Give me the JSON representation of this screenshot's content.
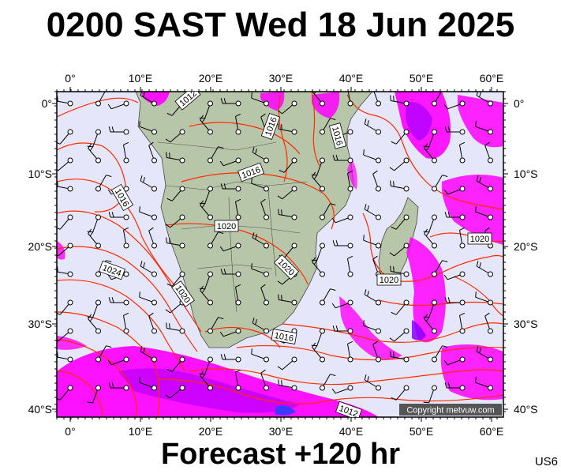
{
  "title": "0200 SAST Wed 18 Jun 2025",
  "footer": "Forecast +120 hr",
  "code": "US6",
  "copyright": "Copyright metvuw.com",
  "axes": {
    "longitudes": [
      "0°",
      "10°E",
      "20°E",
      "30°E",
      "40°E",
      "50°E",
      "60°E"
    ],
    "latitudes": [
      "0°",
      "10°S",
      "20°S",
      "30°S",
      "40°S"
    ]
  },
  "isobar_labels": [
    "1012",
    "1016",
    "1016",
    "1016",
    "1016",
    "1020",
    "1020",
    "1020",
    "1020",
    "1020",
    "1024",
    "1016",
    "1012"
  ],
  "colors": {
    "ocean": "#e6e6fa",
    "land": "#b7c6a8",
    "isobar": "#ff2a00",
    "rain_light": "#ff00ff",
    "rain_mid": "#a000ff",
    "rain_heavy": "#4040ff",
    "wind": "#000000"
  }
}
